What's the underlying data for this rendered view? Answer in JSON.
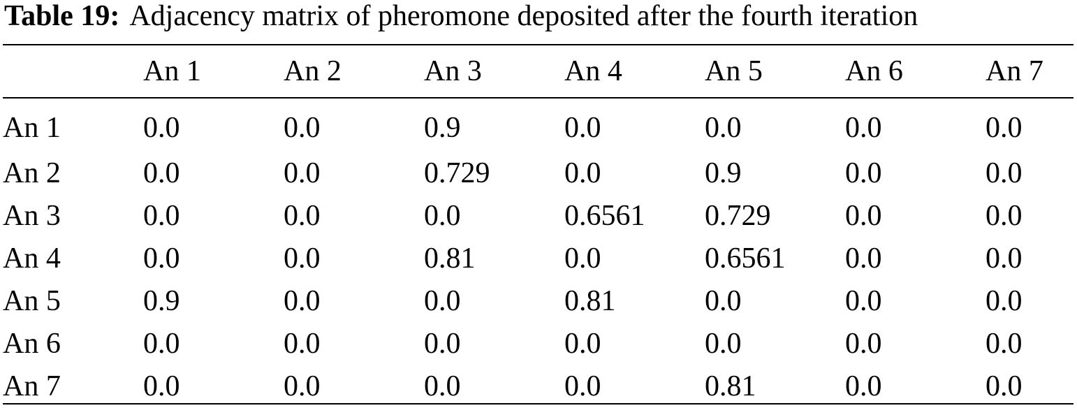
{
  "caption": {
    "label": "Table 19:",
    "text": "Adjacency matrix of pheromone deposited after the fourth iteration"
  },
  "table": {
    "corner": "",
    "columns": [
      "An 1",
      "An 2",
      "An 3",
      "An 4",
      "An 5",
      "An 6",
      "An 7"
    ],
    "rows": [
      {
        "label": "An 1",
        "cells": [
          "0.0",
          "0.0",
          "0.9",
          "0.0",
          "0.0",
          "0.0",
          "0.0"
        ]
      },
      {
        "label": "An 2",
        "cells": [
          "0.0",
          "0.0",
          "0.729",
          "0.0",
          "0.9",
          "0.0",
          "0.0"
        ]
      },
      {
        "label": "An 3",
        "cells": [
          "0.0",
          "0.0",
          "0.0",
          "0.6561",
          "0.729",
          "0.0",
          "0.0"
        ]
      },
      {
        "label": "An 4",
        "cells": [
          "0.0",
          "0.0",
          "0.81",
          "0.0",
          "0.6561",
          "0.0",
          "0.0"
        ]
      },
      {
        "label": "An 5",
        "cells": [
          "0.9",
          "0.0",
          "0.0",
          "0.81",
          "0.0",
          "0.0",
          "0.0"
        ]
      },
      {
        "label": "An 6",
        "cells": [
          "0.0",
          "0.0",
          "0.0",
          "0.0",
          "0.0",
          "0.0",
          "0.0"
        ]
      },
      {
        "label": "An 7",
        "cells": [
          "0.0",
          "0.0",
          "0.0",
          "0.0",
          "0.81",
          "0.0",
          "0.0"
        ]
      }
    ]
  }
}
